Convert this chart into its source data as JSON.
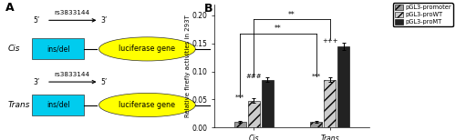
{
  "panel_a_label": "A",
  "panel_b_label": "B",
  "cis_label": "Cis",
  "trans_label": "Trans",
  "rs_label": "rs3833144",
  "ins_del_label": "ins/del",
  "luciferase_label": "luciferase gene",
  "cyan_color": "#00CCEE",
  "yellow_color": "#FFFF00",
  "bar_groups": [
    "Cis",
    "Trans"
  ],
  "bar_labels": [
    "pGL3-promoter",
    "pGL3-proWT",
    "pGL3-proMT"
  ],
  "bar_colors": [
    "#999999",
    "#cccccc",
    "#222222"
  ],
  "bar_hatch": [
    "///",
    "///",
    ""
  ],
  "values_cis": [
    0.01,
    0.048,
    0.085
  ],
  "values_trans": [
    0.01,
    0.085,
    0.145
  ],
  "errors_cis": [
    0.002,
    0.004,
    0.004
  ],
  "errors_trans": [
    0.002,
    0.004,
    0.007
  ],
  "ylim": [
    0.0,
    0.22
  ],
  "yticks": [
    0.0,
    0.05,
    0.1,
    0.15,
    0.2
  ],
  "ylabel": "Relative firefly activities in 293T",
  "ylabel_fontsize": 5.0,
  "tick_fontsize": 5.5,
  "legend_fontsize": 4.8,
  "anno_fontsize": 5.5
}
